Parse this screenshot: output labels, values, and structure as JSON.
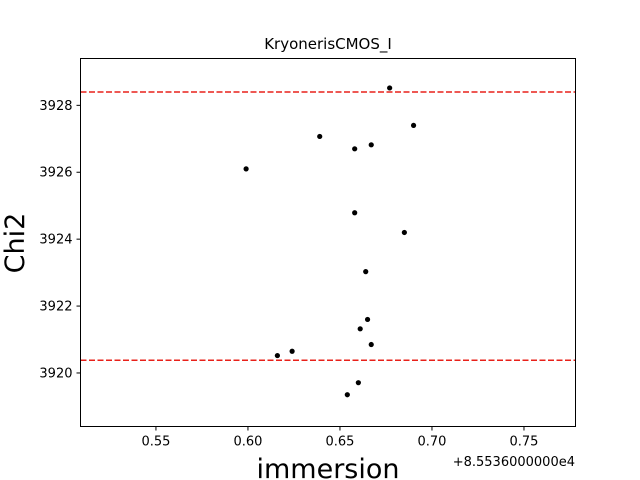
{
  "chart_data": {
    "type": "scatter",
    "title": "KryonerisCMOS_I",
    "xlabel": "immersion",
    "ylabel": "Chi2",
    "x_offset_label": "+8.5536000000e4",
    "xlim": [
      0.509,
      0.778
    ],
    "ylim": [
      3918.4,
      3929.4
    ],
    "xticks": [
      0.55,
      0.6,
      0.65,
      0.7,
      0.75
    ],
    "xtick_labels": [
      "0.55",
      "0.60",
      "0.65",
      "0.70",
      "0.75"
    ],
    "yticks": [
      3920,
      3922,
      3924,
      3926,
      3928
    ],
    "ytick_labels": [
      "3920",
      "3922",
      "3924",
      "3926",
      "3928"
    ],
    "grid": false,
    "hlines": [
      {
        "y": 3928.4,
        "color": "#e8201a",
        "style": "dashed"
      },
      {
        "y": 3920.38,
        "color": "#e8201a",
        "style": "dashed"
      }
    ],
    "series": [
      {
        "color": "#000000",
        "points": [
          {
            "x": 0.677,
            "y": 3928.52
          },
          {
            "x": 0.69,
            "y": 3927.4
          },
          {
            "x": 0.639,
            "y": 3927.07
          },
          {
            "x": 0.667,
            "y": 3926.82
          },
          {
            "x": 0.658,
            "y": 3926.7
          },
          {
            "x": 0.599,
            "y": 3926.1
          },
          {
            "x": 0.658,
            "y": 3924.79
          },
          {
            "x": 0.685,
            "y": 3924.2
          },
          {
            "x": 0.664,
            "y": 3923.03
          },
          {
            "x": 0.665,
            "y": 3921.6
          },
          {
            "x": 0.661,
            "y": 3921.32
          },
          {
            "x": 0.667,
            "y": 3920.85
          },
          {
            "x": 0.624,
            "y": 3920.65
          },
          {
            "x": 0.616,
            "y": 3920.52
          },
          {
            "x": 0.66,
            "y": 3919.71
          },
          {
            "x": 0.654,
            "y": 3919.35
          }
        ]
      }
    ]
  }
}
